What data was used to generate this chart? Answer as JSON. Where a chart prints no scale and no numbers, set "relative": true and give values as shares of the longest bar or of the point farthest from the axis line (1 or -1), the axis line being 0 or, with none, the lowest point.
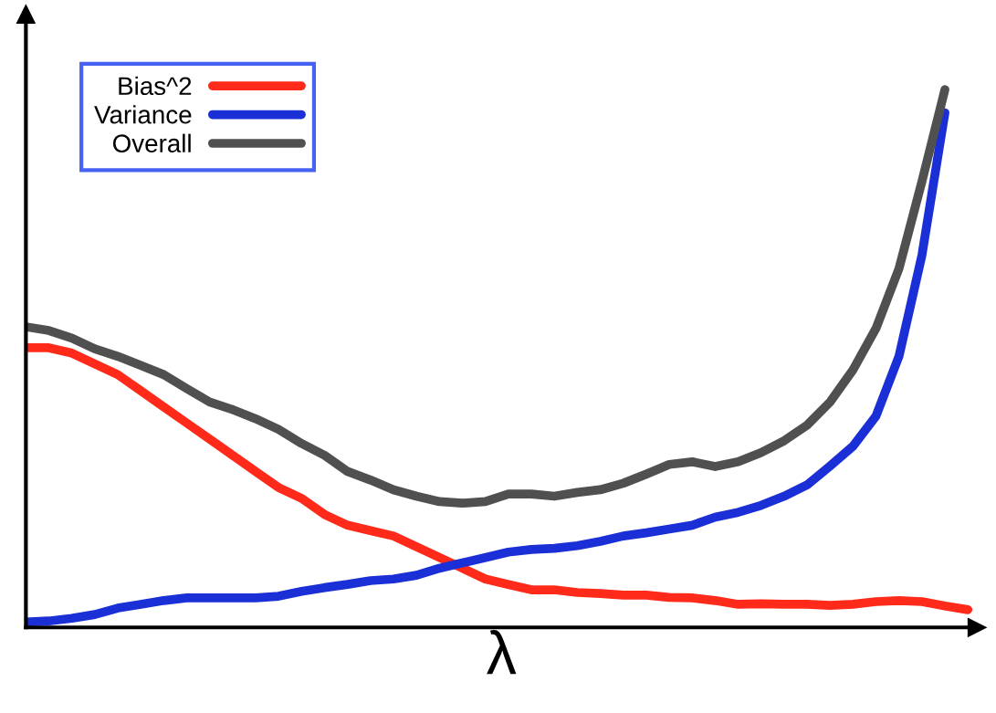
{
  "chart_data": {
    "type": "line",
    "relative": true,
    "xlabel": "λ",
    "legend": "top left",
    "grid": false,
    "tick_labels": false,
    "marker": "none",
    "line_style": "solid",
    "categories": [
      null,
      null,
      null,
      null,
      null,
      null,
      null,
      null,
      null,
      null,
      null,
      null,
      null,
      null,
      null,
      null,
      null,
      null,
      null,
      null,
      null,
      null,
      null,
      null,
      null,
      null,
      null,
      null,
      null,
      null,
      null,
      null,
      null,
      null,
      null,
      null,
      null,
      null,
      null,
      null,
      null,
      null
    ],
    "series": [
      {
        "name": "Bias^2",
        "color": "#ff2a1a",
        "values": [
          0.52,
          0.52,
          0.51,
          0.49,
          0.47,
          0.44,
          0.41,
          0.38,
          0.35,
          0.32,
          0.29,
          0.26,
          0.24,
          0.21,
          0.19,
          0.18,
          0.17,
          0.15,
          0.13,
          0.11,
          0.09,
          0.08,
          0.07,
          0.07,
          0.065,
          0.063,
          0.06,
          0.06,
          0.056,
          0.055,
          0.05,
          0.043,
          0.044,
          0.043,
          0.043,
          0.041,
          0.043,
          0.048,
          0.05,
          0.048,
          0.04,
          0.033
        ]
      },
      {
        "name": "Variance",
        "color": "#1a2fd6",
        "values": [
          0.01,
          0.012,
          0.017,
          0.024,
          0.036,
          0.043,
          0.05,
          0.055,
          0.055,
          0.055,
          0.055,
          0.058,
          0.067,
          0.074,
          0.08,
          0.087,
          0.09,
          0.097,
          0.11,
          0.12,
          0.13,
          0.14,
          0.145,
          0.147,
          0.152,
          0.16,
          0.17,
          0.176,
          0.183,
          0.19,
          0.205,
          0.214,
          0.227,
          0.244,
          0.265,
          0.3,
          0.337,
          0.393,
          0.504,
          0.692,
          0.957,
          null
        ]
      },
      {
        "name": "Overall",
        "color": "#505050",
        "values": [
          0.559,
          0.552,
          0.538,
          0.518,
          0.504,
          0.487,
          0.47,
          0.444,
          0.419,
          0.405,
          0.388,
          0.368,
          0.342,
          0.32,
          0.29,
          0.274,
          0.256,
          0.244,
          0.234,
          0.231,
          0.234,
          0.248,
          0.248,
          0.244,
          0.251,
          0.256,
          0.268,
          0.285,
          0.303,
          0.308,
          0.299,
          0.308,
          0.325,
          0.347,
          0.376,
          0.419,
          0.479,
          0.556,
          0.667,
          0.829,
          1,
          null
        ]
      }
    ]
  }
}
